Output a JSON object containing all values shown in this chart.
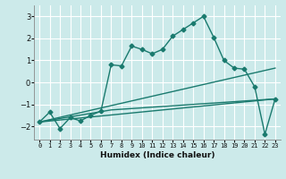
{
  "xlabel": "Humidex (Indice chaleur)",
  "background_color": "#cceaea",
  "grid_color": "#ffffff",
  "line_color": "#1a7a6e",
  "xlim": [
    -0.5,
    23.5
  ],
  "ylim": [
    -2.6,
    3.5
  ],
  "yticks": [
    -2,
    -1,
    0,
    1,
    2,
    3
  ],
  "xticks": [
    0,
    1,
    2,
    3,
    4,
    5,
    6,
    7,
    8,
    9,
    10,
    11,
    12,
    13,
    14,
    15,
    16,
    17,
    18,
    19,
    20,
    21,
    22,
    23
  ],
  "series1_x": [
    0,
    1,
    2,
    3,
    4,
    5,
    6,
    7,
    8,
    9,
    10,
    11,
    12,
    13,
    14,
    15,
    16,
    17,
    18,
    19,
    20,
    21,
    22,
    23
  ],
  "series1_y": [
    -1.8,
    -1.35,
    -2.1,
    -1.6,
    -1.75,
    -1.5,
    -1.3,
    0.8,
    0.75,
    1.65,
    1.5,
    1.3,
    1.5,
    2.1,
    2.4,
    2.7,
    3.0,
    2.05,
    1.0,
    0.65,
    0.6,
    -0.2,
    -2.35,
    -0.75
  ],
  "series2_x": [
    0,
    7,
    23
  ],
  "series2_y": [
    -1.8,
    -1.25,
    -0.75
  ],
  "series3_x": [
    0,
    23
  ],
  "series3_y": [
    -1.8,
    -0.75
  ],
  "series4_x": [
    0,
    23
  ],
  "series4_y": [
    -1.8,
    0.65
  ]
}
